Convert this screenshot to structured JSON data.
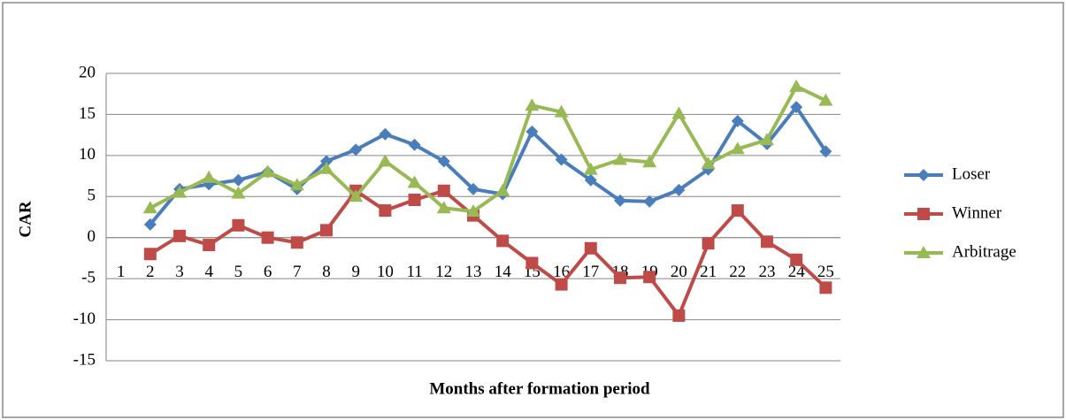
{
  "chart_data": {
    "type": "line",
    "y_label": "CAR",
    "x_label": "Months after formation period",
    "categories": [
      "1",
      "2",
      "3",
      "4",
      "5",
      "6",
      "7",
      "8",
      "9",
      "10",
      "11",
      "12",
      "13",
      "14",
      "15",
      "16",
      "17",
      "18",
      "19",
      "20",
      "21",
      "22",
      "23",
      "24",
      "25"
    ],
    "series": [
      {
        "name": "Loser",
        "color": "#4a7ebb",
        "marker": "diamond",
        "values": [
          null,
          1.6,
          5.9,
          6.5,
          7,
          8,
          5.9,
          9.3,
          10.7,
          12.6,
          11.3,
          9.3,
          5.9,
          5.3,
          12.9,
          9.5,
          7,
          4.5,
          4.4,
          5.8,
          8.3,
          14.2,
          11.4,
          15.9,
          10.5
        ]
      },
      {
        "name": "Winner",
        "color": "#be4b48",
        "marker": "square",
        "values": [
          null,
          -2,
          0.2,
          -0.9,
          1.5,
          0,
          -0.6,
          0.9,
          5.7,
          3.3,
          4.6,
          5.7,
          2.7,
          -0.4,
          -3.1,
          -5.7,
          -1.3,
          -4.9,
          -4.8,
          -9.5,
          -0.7,
          3.3,
          -0.5,
          -2.7,
          -6.1
        ]
      },
      {
        "name": "Arbitrage",
        "color": "#98b954",
        "marker": "triangle",
        "values": [
          null,
          3.6,
          5.5,
          7.3,
          5.4,
          8,
          6.4,
          8.4,
          5,
          9.3,
          6.7,
          3.6,
          3.2,
          5.7,
          16.1,
          15.3,
          8.3,
          9.5,
          9.2,
          15.1,
          9,
          10.8,
          11.9,
          18.4,
          16.7
        ]
      }
    ],
    "ylim": [
      -15,
      20
    ],
    "yticks": [
      -15,
      -10,
      -5,
      0,
      5,
      10,
      15,
      20
    ],
    "grid": true,
    "legend": "right"
  }
}
